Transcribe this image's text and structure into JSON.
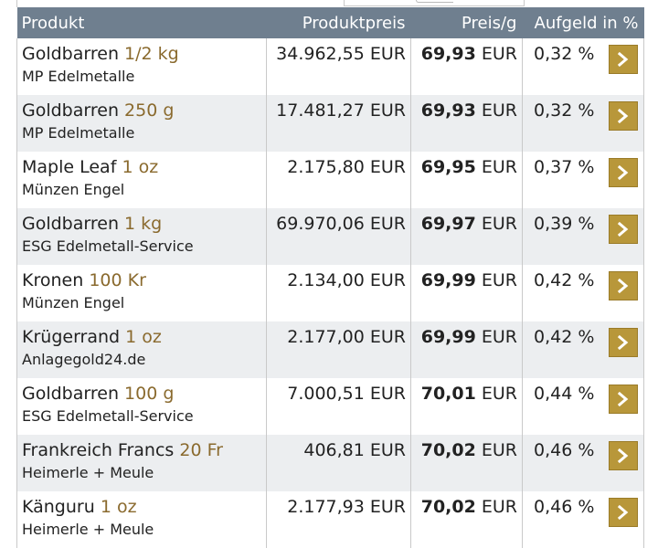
{
  "header": {
    "produkt": "Produkt",
    "produktpreis": "Produktpreis",
    "preis_g": "Preis/g",
    "aufgeld": "Aufgeld in %"
  },
  "rows": [
    {
      "name": "Goldbarren",
      "weight": "1/2 kg",
      "dealer": "MP Edelmetalle",
      "price": "34.962,55 EUR",
      "pg_value": "69,93",
      "pg_unit": "EUR",
      "aufgeld": "0,32 %"
    },
    {
      "name": "Goldbarren",
      "weight": "250 g",
      "dealer": "MP Edelmetalle",
      "price": "17.481,27 EUR",
      "pg_value": "69,93",
      "pg_unit": "EUR",
      "aufgeld": "0,32 %"
    },
    {
      "name": "Maple Leaf",
      "weight": "1 oz",
      "dealer": "Münzen Engel",
      "price": "2.175,80 EUR",
      "pg_value": "69,95",
      "pg_unit": "EUR",
      "aufgeld": "0,37 %"
    },
    {
      "name": "Goldbarren",
      "weight": "1 kg",
      "dealer": "ESG Edelmetall-Service",
      "price": "69.970,06 EUR",
      "pg_value": "69,97",
      "pg_unit": "EUR",
      "aufgeld": "0,39 %"
    },
    {
      "name": "Kronen",
      "weight": "100 Kr",
      "dealer": "Münzen Engel",
      "price": "2.134,00 EUR",
      "pg_value": "69,99",
      "pg_unit": "EUR",
      "aufgeld": "0,42 %"
    },
    {
      "name": "Krügerrand",
      "weight": "1 oz",
      "dealer": "Anlagegold24.de",
      "price": "2.177,00 EUR",
      "pg_value": "69,99",
      "pg_unit": "EUR",
      "aufgeld": "0,42 %"
    },
    {
      "name": "Goldbarren",
      "weight": "100 g",
      "dealer": "ESG Edelmetall-Service",
      "price": "7.000,51 EUR",
      "pg_value": "70,01",
      "pg_unit": "EUR",
      "aufgeld": "0,44 %"
    },
    {
      "name": "Frankreich Francs",
      "weight": "20 Fr",
      "dealer": "Heimerle + Meule",
      "price": "406,81 EUR",
      "pg_value": "70,02",
      "pg_unit": "EUR",
      "aufgeld": "0,46 %"
    },
    {
      "name": "Känguru",
      "weight": "1 oz",
      "dealer": "Heimerle + Meule",
      "price": "2.177,93 EUR",
      "pg_value": "70,02",
      "pg_unit": "EUR",
      "aufgeld": "0,46 %"
    }
  ],
  "colors": {
    "header_bg": "#6f7f8f",
    "weight_text": "#8a6a2e",
    "button_gold": "#b8973a",
    "alt_row": "#eceef0"
  },
  "icons": {
    "row_button": "chevron-right-icon"
  }
}
